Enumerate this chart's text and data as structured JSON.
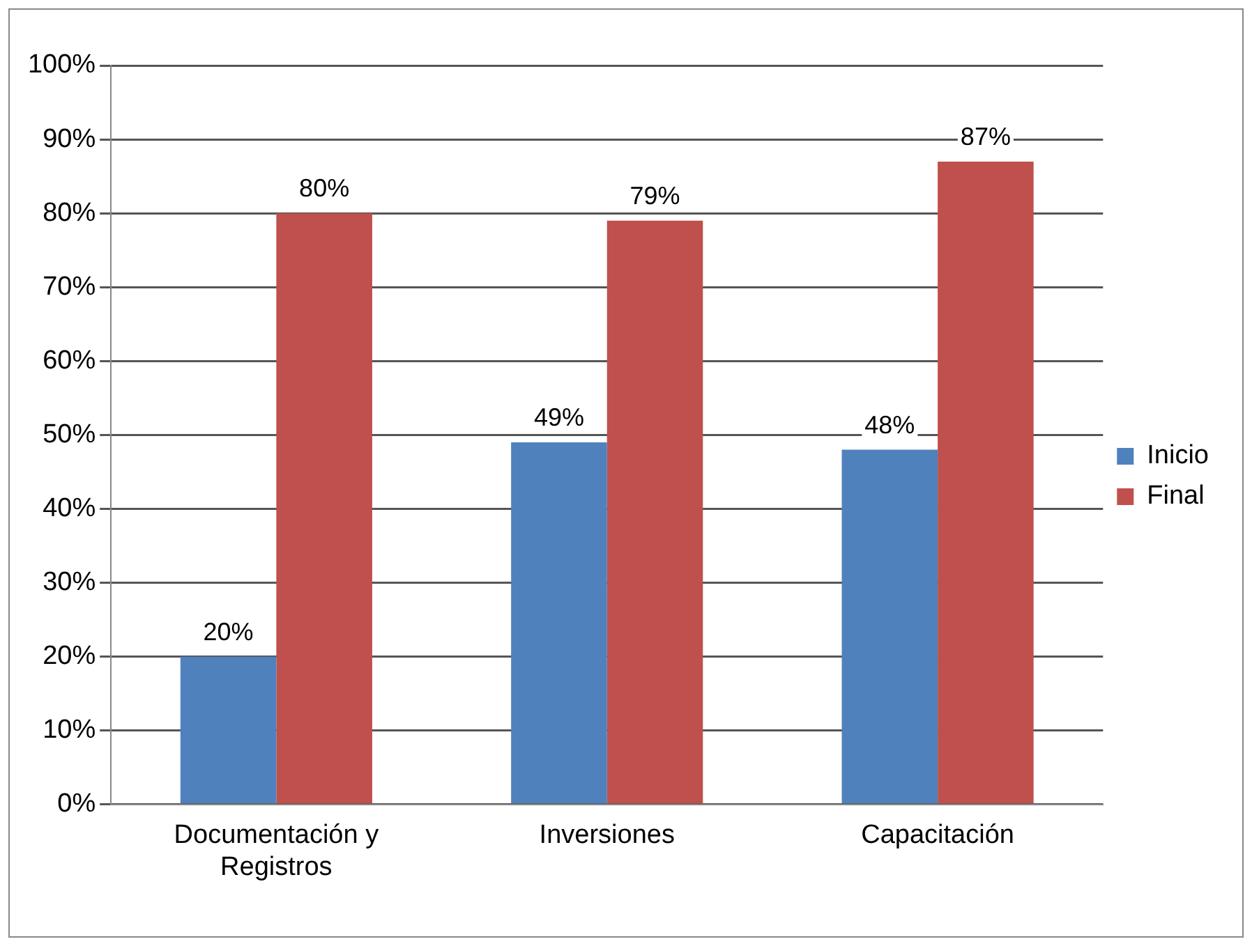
{
  "chart_data": {
    "type": "bar",
    "categories": [
      "Documentación y Registros",
      "Inversiones",
      "Capacitación"
    ],
    "series": [
      {
        "name": "Inicio",
        "color": "#4f81bd",
        "values": [
          20,
          49,
          48
        ],
        "value_labels": [
          "20%",
          "49%",
          "48%"
        ]
      },
      {
        "name": "Final",
        "color": "#c0504d",
        "values": [
          80,
          79,
          87
        ],
        "value_labels": [
          "80%",
          "79%",
          "87%"
        ]
      }
    ],
    "ylim": [
      0,
      100
    ],
    "yticks": [
      {
        "value": 0,
        "label": "0%"
      },
      {
        "value": 10,
        "label": "10%"
      },
      {
        "value": 20,
        "label": "20%"
      },
      {
        "value": 30,
        "label": "30%"
      },
      {
        "value": 40,
        "label": "40%"
      },
      {
        "value": 50,
        "label": "50%"
      },
      {
        "value": 60,
        "label": "60%"
      },
      {
        "value": 70,
        "label": "70%"
      },
      {
        "value": 80,
        "label": "80%"
      },
      {
        "value": 90,
        "label": "90%"
      },
      {
        "value": 100,
        "label": "100%"
      }
    ],
    "grid": "y",
    "legend": "right"
  }
}
